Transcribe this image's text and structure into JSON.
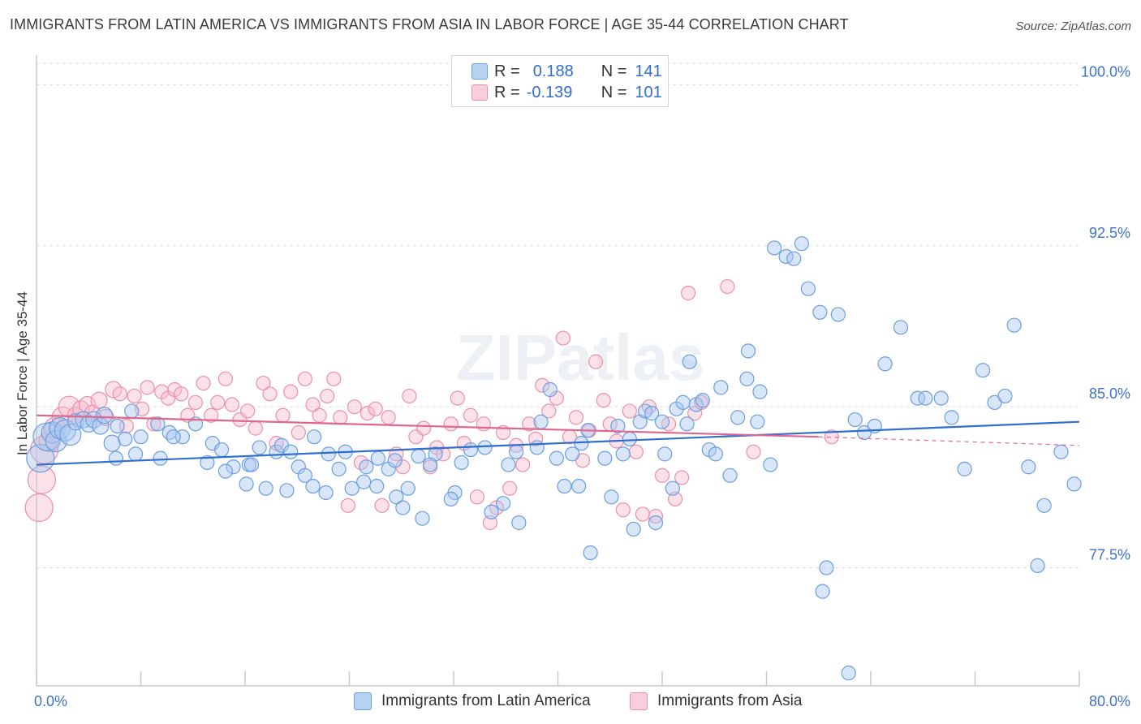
{
  "title": "IMMIGRANTS FROM LATIN AMERICA VS IMMIGRANTS FROM ASIA IN LABOR FORCE | AGE 35-44 CORRELATION CHART",
  "source": "Source: ZipAtlas.com",
  "watermark": "ZIPatlas",
  "legend": {
    "rows": [
      {
        "r_label": "R =",
        "r_value": "0.188",
        "n_label": "N =",
        "n_value": "141",
        "color": "#a9c8f0"
      },
      {
        "r_label": "R =",
        "r_value": "-0.139",
        "n_label": "N =",
        "n_value": "101",
        "color": "#f7bccd"
      }
    ]
  },
  "chart_data": {
    "type": "scatter",
    "title": "IMMIGRANTS FROM LATIN AMERICA VS IMMIGRANTS FROM ASIA IN LABOR FORCE | AGE 35-44 CORRELATION CHART",
    "xlabel": "",
    "ylabel": "In Labor Force | Age 35-44",
    "xlim": [
      0,
      80
    ],
    "ylim": [
      72,
      101
    ],
    "x_tick_labels": [
      "0.0%",
      "80.0%"
    ],
    "y_ticks": [
      77.5,
      85.0,
      92.5,
      100.0
    ],
    "y_tick_labels": [
      "77.5%",
      "85.0%",
      "92.5%",
      "100.0%"
    ],
    "grid": true,
    "colors": {
      "blue": "#6a9ee0",
      "pink": "#ec8fab",
      "blue_line": "#2f6dd0",
      "pink_line": "#e0668e",
      "tick_label": "#3d72c9"
    },
    "series": [
      {
        "name": "Immigrants from Latin America",
        "trend": {
          "x": [
            0,
            80
          ],
          "y": [
            82.3,
            84.3
          ]
        },
        "points": [
          [
            0.3,
            82.6
          ],
          [
            0.8,
            83.6
          ],
          [
            1.2,
            83.8
          ],
          [
            1.5,
            83.4
          ],
          [
            1.8,
            84.0
          ],
          [
            2.2,
            83.9
          ],
          [
            2.6,
            83.7
          ],
          [
            3.0,
            84.3
          ],
          [
            3.6,
            84.4
          ],
          [
            4.0,
            84.2
          ],
          [
            4.4,
            84.4
          ],
          [
            4.9,
            84.1
          ],
          [
            5.2,
            84.6
          ],
          [
            5.8,
            83.3
          ],
          [
            6.2,
            84.1
          ],
          [
            6.8,
            83.5
          ],
          [
            7.3,
            84.8
          ],
          [
            8.0,
            83.6
          ],
          [
            9.3,
            84.2
          ],
          [
            10.2,
            83.8
          ],
          [
            11.2,
            83.6
          ],
          [
            12.2,
            84.2
          ],
          [
            13.5,
            83.3
          ],
          [
            14.2,
            83.0
          ],
          [
            15.1,
            82.2
          ],
          [
            16.3,
            82.3
          ],
          [
            17.1,
            83.1
          ],
          [
            18.4,
            82.9
          ],
          [
            18.8,
            83.2
          ],
          [
            19.5,
            82.9
          ],
          [
            20.1,
            82.2
          ],
          [
            21.3,
            83.6
          ],
          [
            22.4,
            82.8
          ],
          [
            23.2,
            82.1
          ],
          [
            23.7,
            82.9
          ],
          [
            25.3,
            82.2
          ],
          [
            26.2,
            82.6
          ],
          [
            27.0,
            82.1
          ],
          [
            27.5,
            82.5
          ],
          [
            6.1,
            82.6
          ],
          [
            7.6,
            82.8
          ],
          [
            9.5,
            82.6
          ],
          [
            10.5,
            83.6
          ],
          [
            13.1,
            82.4
          ],
          [
            14.5,
            82.0
          ],
          [
            16.1,
            81.4
          ],
          [
            16.5,
            82.3
          ],
          [
            17.6,
            81.2
          ],
          [
            19.2,
            81.1
          ],
          [
            20.6,
            81.8
          ],
          [
            21.2,
            81.3
          ],
          [
            22.2,
            81.0
          ],
          [
            24.2,
            81.2
          ],
          [
            25.1,
            81.5
          ],
          [
            26.1,
            81.3
          ],
          [
            27.6,
            80.8
          ],
          [
            28.5,
            81.2
          ],
          [
            29.3,
            82.7
          ],
          [
            30.6,
            82.8
          ],
          [
            32.1,
            81.0
          ],
          [
            31.8,
            80.7
          ],
          [
            28.1,
            80.3
          ],
          [
            29.6,
            79.8
          ],
          [
            30.2,
            82.3
          ],
          [
            32.6,
            82.4
          ],
          [
            33.3,
            83.0
          ],
          [
            34.4,
            83.1
          ],
          [
            34.9,
            80.1
          ],
          [
            35.8,
            80.5
          ],
          [
            36.2,
            82.3
          ],
          [
            36.8,
            82.9
          ],
          [
            37.0,
            79.6
          ],
          [
            38.4,
            83.1
          ],
          [
            38.7,
            84.3
          ],
          [
            39.4,
            85.8
          ],
          [
            39.9,
            82.6
          ],
          [
            40.5,
            81.3
          ],
          [
            41.1,
            82.8
          ],
          [
            41.8,
            83.3
          ],
          [
            41.6,
            81.3
          ],
          [
            42.3,
            83.9
          ],
          [
            42.5,
            78.2
          ],
          [
            43.6,
            82.6
          ],
          [
            44.1,
            80.8
          ],
          [
            44.6,
            84.1
          ],
          [
            45.0,
            82.8
          ],
          [
            45.5,
            83.5
          ],
          [
            45.8,
            79.3
          ],
          [
            46.3,
            84.3
          ],
          [
            46.7,
            84.8
          ],
          [
            47.2,
            84.7
          ],
          [
            47.5,
            79.6
          ],
          [
            48.0,
            84.3
          ],
          [
            48.2,
            82.8
          ],
          [
            48.8,
            81.2
          ],
          [
            49.1,
            84.9
          ],
          [
            49.6,
            85.2
          ],
          [
            49.9,
            84.2
          ],
          [
            50.1,
            87.1
          ],
          [
            50.6,
            85.1
          ],
          [
            51.1,
            85.3
          ],
          [
            51.6,
            83.0
          ],
          [
            52.1,
            82.8
          ],
          [
            52.5,
            85.9
          ],
          [
            53.2,
            81.8
          ],
          [
            53.8,
            84.5
          ],
          [
            54.5,
            86.3
          ],
          [
            54.6,
            87.6
          ],
          [
            55.3,
            84.3
          ],
          [
            56.3,
            82.3
          ],
          [
            55.5,
            85.7
          ],
          [
            56.6,
            92.4
          ],
          [
            57.5,
            92.0
          ],
          [
            58.1,
            91.9
          ],
          [
            58.7,
            92.6
          ],
          [
            59.2,
            90.5
          ],
          [
            60.1,
            89.4
          ],
          [
            60.3,
            76.4
          ],
          [
            60.6,
            77.5
          ],
          [
            61.5,
            89.3
          ],
          [
            62.3,
            72.6
          ],
          [
            62.8,
            84.4
          ],
          [
            63.5,
            83.8
          ],
          [
            64.3,
            84.1
          ],
          [
            65.1,
            87.0
          ],
          [
            66.3,
            88.7
          ],
          [
            67.6,
            85.4
          ],
          [
            68.2,
            85.4
          ],
          [
            69.4,
            85.4
          ],
          [
            70.2,
            84.5
          ],
          [
            71.2,
            82.1
          ],
          [
            72.6,
            86.7
          ],
          [
            73.5,
            85.2
          ],
          [
            74.3,
            85.5
          ],
          [
            75.0,
            88.8
          ],
          [
            76.1,
            82.2
          ],
          [
            76.8,
            77.6
          ],
          [
            77.3,
            80.4
          ],
          [
            78.6,
            82.9
          ],
          [
            79.6,
            81.4
          ]
        ]
      },
      {
        "name": "Immigrants from Asia",
        "trend": {
          "x": [
            0,
            60
          ],
          "y": [
            84.6,
            83.6
          ]
        },
        "trend_dashed": {
          "x": [
            60,
            80
          ],
          "y": [
            83.6,
            83.2
          ]
        },
        "points": [
          [
            0.2,
            80.3
          ],
          [
            0.4,
            81.6
          ],
          [
            0.6,
            83.0
          ],
          [
            1.0,
            83.4
          ],
          [
            1.4,
            84.0
          ],
          [
            2.0,
            84.5
          ],
          [
            2.5,
            85.0
          ],
          [
            3.0,
            84.6
          ],
          [
            3.4,
            84.9
          ],
          [
            3.9,
            85.1
          ],
          [
            4.3,
            84.7
          ],
          [
            4.8,
            85.3
          ],
          [
            5.3,
            84.5
          ],
          [
            5.9,
            85.8
          ],
          [
            6.4,
            85.6
          ],
          [
            6.9,
            84.1
          ],
          [
            7.5,
            85.5
          ],
          [
            8.1,
            84.9
          ],
          [
            8.5,
            85.9
          ],
          [
            9.0,
            84.2
          ],
          [
            9.6,
            85.7
          ],
          [
            10.1,
            85.4
          ],
          [
            10.6,
            85.8
          ],
          [
            11.1,
            85.6
          ],
          [
            11.6,
            84.6
          ],
          [
            12.2,
            85.2
          ],
          [
            12.8,
            86.1
          ],
          [
            13.4,
            84.6
          ],
          [
            13.9,
            85.2
          ],
          [
            14.5,
            86.3
          ],
          [
            15.0,
            85.1
          ],
          [
            15.6,
            84.4
          ],
          [
            16.2,
            84.8
          ],
          [
            16.8,
            84.0
          ],
          [
            17.4,
            86.1
          ],
          [
            17.9,
            85.6
          ],
          [
            18.4,
            83.3
          ],
          [
            18.9,
            84.6
          ],
          [
            19.5,
            85.7
          ],
          [
            20.1,
            83.8
          ],
          [
            20.6,
            86.3
          ],
          [
            21.2,
            85.1
          ],
          [
            21.7,
            84.6
          ],
          [
            22.3,
            85.5
          ],
          [
            22.8,
            86.3
          ],
          [
            23.3,
            84.5
          ],
          [
            23.9,
            80.4
          ],
          [
            24.4,
            85.0
          ],
          [
            24.9,
            82.4
          ],
          [
            25.4,
            84.7
          ],
          [
            26.0,
            84.9
          ],
          [
            26.5,
            80.4
          ],
          [
            27.0,
            84.5
          ],
          [
            27.6,
            82.8
          ],
          [
            28.1,
            82.2
          ],
          [
            28.6,
            85.5
          ],
          [
            29.1,
            83.6
          ],
          [
            29.7,
            84.0
          ],
          [
            30.2,
            82.2
          ],
          [
            30.7,
            83.1
          ],
          [
            31.2,
            82.8
          ],
          [
            31.8,
            84.2
          ],
          [
            32.3,
            85.4
          ],
          [
            32.8,
            83.3
          ],
          [
            33.3,
            84.6
          ],
          [
            33.8,
            80.8
          ],
          [
            34.3,
            84.2
          ],
          [
            34.8,
            79.6
          ],
          [
            35.3,
            80.3
          ],
          [
            35.8,
            83.8
          ],
          [
            36.3,
            81.2
          ],
          [
            36.8,
            83.2
          ],
          [
            37.3,
            82.3
          ],
          [
            37.8,
            84.2
          ],
          [
            38.3,
            83.5
          ],
          [
            38.8,
            86.0
          ],
          [
            39.3,
            84.8
          ],
          [
            39.9,
            85.4
          ],
          [
            40.4,
            88.2
          ],
          [
            40.9,
            83.6
          ],
          [
            41.4,
            84.5
          ],
          [
            41.9,
            82.5
          ],
          [
            42.4,
            83.9
          ],
          [
            42.9,
            87.1
          ],
          [
            43.5,
            85.3
          ],
          [
            44.0,
            84.2
          ],
          [
            44.5,
            83.4
          ],
          [
            45.0,
            80.2
          ],
          [
            45.5,
            84.8
          ],
          [
            46.0,
            82.9
          ],
          [
            46.5,
            80.0
          ],
          [
            47.0,
            85.0
          ],
          [
            47.5,
            79.9
          ],
          [
            48.0,
            81.8
          ],
          [
            48.5,
            84.2
          ],
          [
            49.0,
            80.7
          ],
          [
            49.5,
            81.7
          ],
          [
            50.0,
            90.3
          ],
          [
            50.5,
            84.7
          ],
          [
            51.0,
            85.2
          ],
          [
            53.0,
            90.6
          ],
          [
            55.0,
            82.9
          ],
          [
            61.0,
            83.6
          ]
        ]
      }
    ]
  },
  "bottom_legend": [
    {
      "label": "Immigrants from Latin America",
      "color": "#a9c8f0"
    },
    {
      "label": "Immigrants from Asia",
      "color": "#f7bccd"
    }
  ]
}
